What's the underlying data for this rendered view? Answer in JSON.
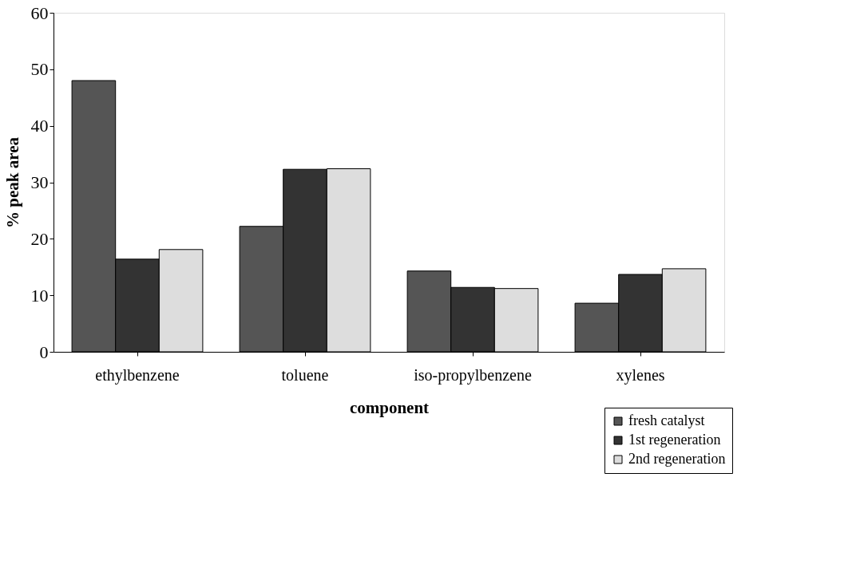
{
  "chart_data": {
    "type": "bar",
    "xlabel": "component",
    "ylabel": "% peak area",
    "categories": [
      "ethylbenzene",
      "toluene",
      "iso-propylbenzene",
      "xylenes"
    ],
    "series": [
      {
        "name": "fresh catalyst",
        "color": "#555555",
        "values": [
          48,
          22.2,
          14.3,
          8.6
        ]
      },
      {
        "name": "1st regeneration",
        "color": "#333333",
        "values": [
          16.4,
          32.3,
          11.4,
          13.7
        ]
      },
      {
        "name": "2nd regeneration",
        "color": "#dddddd",
        "values": [
          18.1,
          32.4,
          11.2,
          14.7
        ]
      }
    ],
    "ylim": [
      0,
      60
    ],
    "yticks": [
      0,
      10,
      20,
      30,
      40,
      50,
      60
    ],
    "grid": false,
    "legend": "bottom right"
  }
}
